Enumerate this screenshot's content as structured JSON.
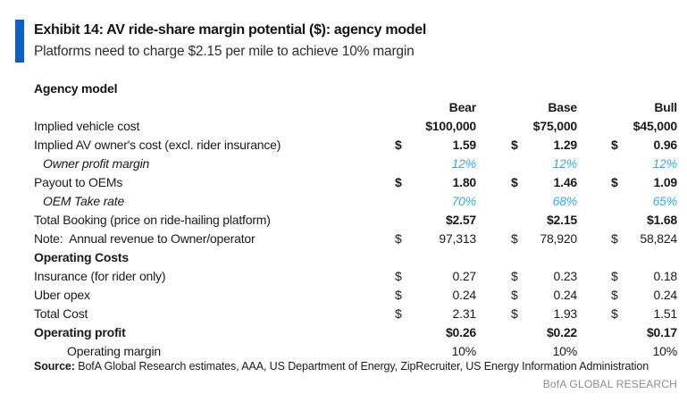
{
  "exhibit": {
    "title": "Exhibit 14: AV ride-share margin potential ($): agency model",
    "subtitle": "Platforms need to charge $2.15 per mile to achieve 10% margin"
  },
  "table": {
    "section_title": "Agency model",
    "columns": [
      "Bear",
      "Base",
      "Bull"
    ],
    "rows": [
      {
        "label": "Implied vehicle cost",
        "values_bold": true,
        "cells": [
          {
            "d": "",
            "v": "$100,000"
          },
          {
            "d": "",
            "v": "$75,000"
          },
          {
            "d": "",
            "v": "$45,000"
          }
        ]
      },
      {
        "label": "Implied AV owner's cost (excl. rider insurance)",
        "values_bold": true,
        "cells": [
          {
            "d": "$",
            "v": "1.59"
          },
          {
            "d": "$",
            "v": "1.29"
          },
          {
            "d": "$",
            "v": "0.96"
          }
        ]
      },
      {
        "label": "Owner profit margin",
        "highlight": true,
        "indent": 1,
        "cells": [
          {
            "d": "",
            "v": "12%"
          },
          {
            "d": "",
            "v": "12%"
          },
          {
            "d": "",
            "v": "12%"
          }
        ]
      },
      {
        "label": "Payout to OEMs",
        "values_bold": true,
        "cells": [
          {
            "d": "$",
            "v": "1.80"
          },
          {
            "d": "$",
            "v": "1.46"
          },
          {
            "d": "$",
            "v": "1.09"
          }
        ]
      },
      {
        "label": "OEM Take rate",
        "highlight": true,
        "indent": 1,
        "cells": [
          {
            "d": "",
            "v": "70%"
          },
          {
            "d": "",
            "v": "68%"
          },
          {
            "d": "",
            "v": "65%"
          }
        ]
      },
      {
        "label": "Total Booking (price on ride-hailing platform)",
        "values_bold": true,
        "cells": [
          {
            "d": "",
            "v": "$2.57"
          },
          {
            "d": "",
            "v": "$2.15"
          },
          {
            "d": "",
            "v": "$1.68"
          }
        ]
      },
      {
        "label": "Note:  Annual revenue to Owner/operator",
        "cells": [
          {
            "d": "$",
            "v": "97,313"
          },
          {
            "d": "$",
            "v": "78,920"
          },
          {
            "d": "$",
            "v": "58,824"
          }
        ]
      },
      {
        "label": "Operating Costs",
        "label_bold": true,
        "cells": []
      },
      {
        "label": "Insurance (for rider only)",
        "cells": [
          {
            "d": "$",
            "v": "0.27"
          },
          {
            "d": "$",
            "v": "0.23"
          },
          {
            "d": "$",
            "v": "0.18"
          }
        ]
      },
      {
        "label": "Uber opex",
        "cells": [
          {
            "d": "$",
            "v": "0.24"
          },
          {
            "d": "$",
            "v": "0.24"
          },
          {
            "d": "$",
            "v": "0.24"
          }
        ]
      },
      {
        "label": "Total Cost",
        "cells": [
          {
            "d": "$",
            "v": "2.31"
          },
          {
            "d": "$",
            "v": "1.93"
          },
          {
            "d": "$",
            "v": "1.51"
          }
        ]
      },
      {
        "label": "Operating profit",
        "label_bold": true,
        "values_bold": true,
        "cells": [
          {
            "d": "",
            "v": "$0.26"
          },
          {
            "d": "",
            "v": "$0.22"
          },
          {
            "d": "",
            "v": "$0.17"
          }
        ]
      },
      {
        "label": "Operating margin",
        "indent": 2,
        "cells": [
          {
            "d": "",
            "v": "10%"
          },
          {
            "d": "",
            "v": "10%"
          },
          {
            "d": "",
            "v": "10%"
          }
        ]
      }
    ]
  },
  "footer": {
    "source_label": "Source:",
    "source_text": " BofA Global Research estimates, AAA, US Department of Energy, ZipRecruiter, US Energy Information Administration",
    "brand": "BofA GLOBAL RESEARCH"
  },
  "colors": {
    "accent_blue": "#0D5FC6",
    "highlight_blue": "#36A9E1",
    "brand_gray": "#8C8C8C"
  }
}
